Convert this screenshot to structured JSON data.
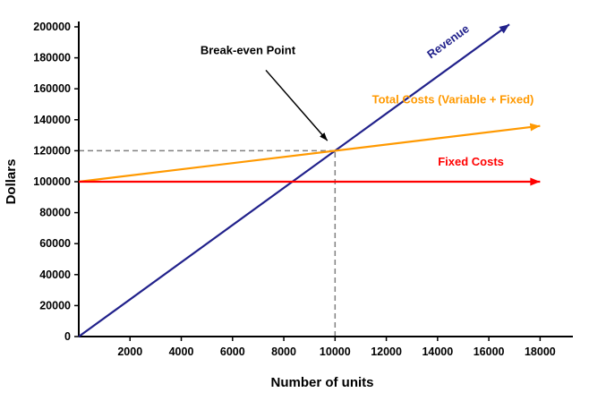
{
  "page": {
    "background": "#ffffff"
  },
  "chart_data": {
    "type": "line",
    "title": "",
    "xlabel": "Number of units",
    "ylabel": "Dollars",
    "xlim": [
      0,
      19000
    ],
    "ylim": [
      0,
      200000
    ],
    "x_ticks": [
      2000,
      4000,
      6000,
      8000,
      10000,
      12000,
      14000,
      16000,
      18000
    ],
    "y_ticks": [
      0,
      20000,
      40000,
      60000,
      80000,
      100000,
      120000,
      140000,
      160000,
      180000,
      200000
    ],
    "grid": false,
    "legend_position": "inline-labels",
    "axis_color": "#000000",
    "series": [
      {
        "id": "revenue",
        "name": "Revenue",
        "color": "#21218B",
        "points": [
          [
            0,
            0
          ],
          [
            16800,
            201600
          ]
        ],
        "label": {
          "text": "Revenue",
          "x": 14500,
          "y": 188500,
          "rotation": -36
        }
      },
      {
        "id": "total-costs",
        "name": "Total Costs (Variable + Fixed)",
        "color": "#FF9900",
        "points": [
          [
            0,
            100000
          ],
          [
            18000,
            136000
          ]
        ],
        "label": {
          "text": "Total Costs (Variable + Fixed)",
          "x": 14600,
          "y": 150500,
          "rotation": 0
        }
      },
      {
        "id": "fixed-costs",
        "name": "Fixed Costs",
        "color": "#FF0000",
        "points": [
          [
            0,
            100000
          ],
          [
            18000,
            100000
          ]
        ],
        "label": {
          "text": "Fixed Costs",
          "x": 15300,
          "y": 110500,
          "rotation": 0
        }
      }
    ],
    "break_even": {
      "x": 10000,
      "y": 120000,
      "label": "Break-even Point",
      "label_x": 6600,
      "label_y": 182500,
      "arrow_from": [
        7300,
        172000
      ],
      "arrow_to": [
        9700,
        126500
      ],
      "dash_color": "#808080",
      "arrow_color": "#000000"
    }
  }
}
